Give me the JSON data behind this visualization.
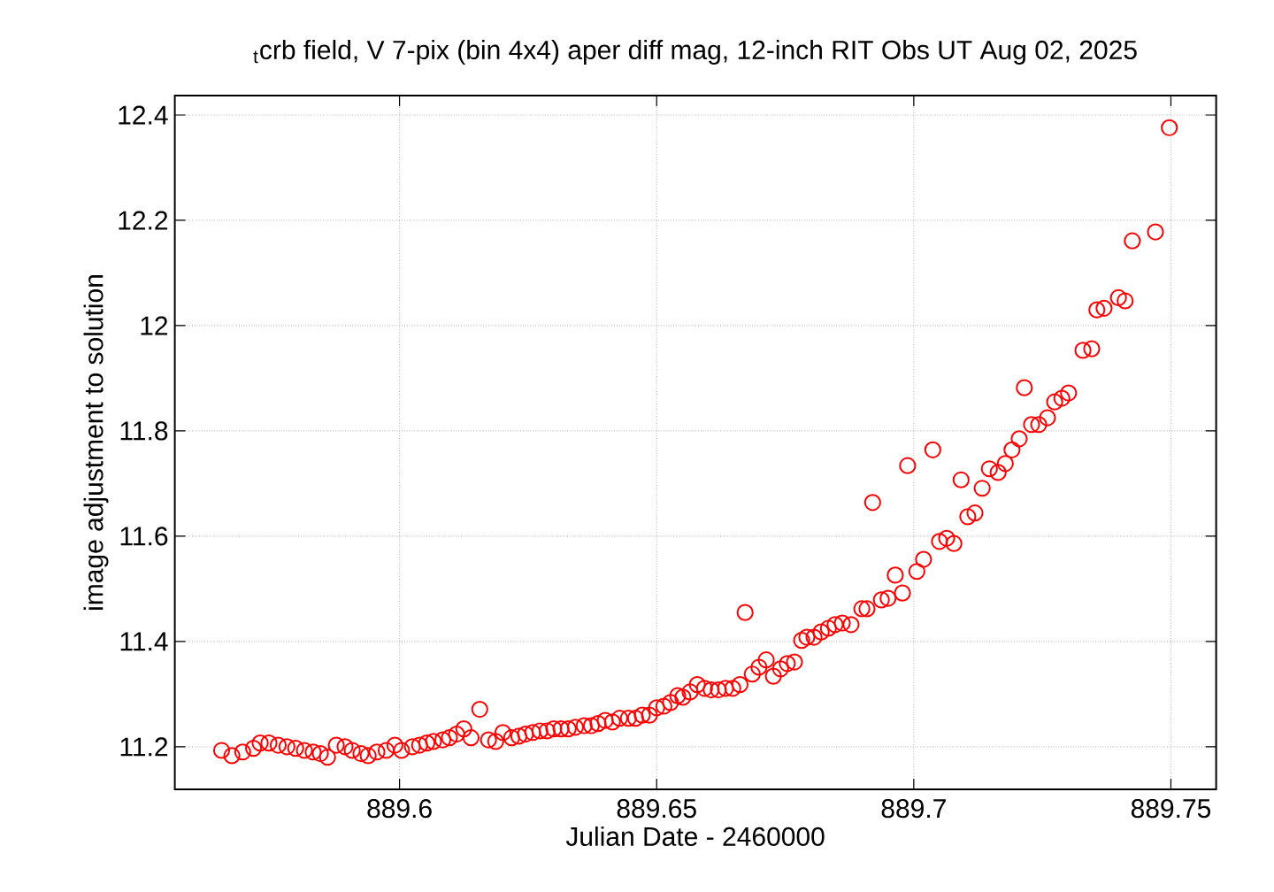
{
  "chart_data": {
    "type": "scatter",
    "title": "$_{t}$crb field, V 7-pix (bin 4x4) aper diff mag,  12-inch RIT Obs UT Aug 02, 2025",
    "xlabel": "Julian Date - 2460000",
    "ylabel": "image adjustment to solution",
    "xlim": [
      889.5563,
      889.7588
    ],
    "ylim": [
      11.119,
      12.437
    ],
    "xticks": [
      889.6,
      889.65,
      889.7,
      889.75
    ],
    "yticks": [
      11.2,
      11.4,
      11.6,
      11.8,
      12,
      12.2,
      12.4
    ],
    "grid": true,
    "marker": "circle",
    "series": [
      {
        "color": "#ff0000",
        "x": [
          889.5654,
          889.5674,
          889.5695,
          889.5716,
          889.5729,
          889.5746,
          889.5764,
          889.5781,
          889.5798,
          889.5815,
          889.5832,
          889.5846,
          889.586,
          889.5877,
          889.5894,
          889.5908,
          889.5925,
          889.5939,
          889.5956,
          889.5974,
          889.5991,
          889.6004,
          889.6025,
          889.6039,
          889.6053,
          889.6066,
          889.6084,
          889.6097,
          889.6111,
          889.6125,
          889.6139,
          889.6156,
          889.6173,
          889.6187,
          889.6201,
          889.6218,
          889.6232,
          889.6245,
          889.6259,
          889.6273,
          889.6287,
          889.63,
          889.6314,
          889.6328,
          889.6342,
          889.6359,
          889.6373,
          889.6386,
          889.64,
          889.6414,
          889.6428,
          889.6445,
          889.6459,
          889.6472,
          889.6486,
          889.65,
          889.6514,
          889.6527,
          889.6541,
          889.6551,
          889.6565,
          889.6579,
          889.6593,
          889.6606,
          889.662,
          889.6634,
          889.6648,
          889.6662,
          889.6672,
          889.6686,
          889.6699,
          889.6713,
          889.6727,
          889.6741,
          889.6754,
          889.6768,
          889.6782,
          889.6792,
          889.6806,
          889.682,
          889.6834,
          889.6847,
          889.6861,
          889.6878,
          889.6899,
          889.6909,
          889.692,
          889.6937,
          889.695,
          889.6964,
          889.6978,
          889.6988,
          889.7006,
          889.7019,
          889.7037,
          889.705,
          889.7064,
          889.7078,
          889.7092,
          889.7105,
          889.7119,
          889.7133,
          889.7147,
          889.7164,
          889.7178,
          889.7191,
          889.7205,
          889.7215,
          889.7229,
          889.7243,
          889.726,
          889.7274,
          889.7288,
          889.7301,
          889.7329,
          889.7346,
          889.7356,
          889.737,
          889.7398,
          889.7411,
          889.7425,
          889.747,
          889.7497
        ],
        "values": [
          11.193,
          11.183,
          11.19,
          11.197,
          11.207,
          11.207,
          11.203,
          11.2,
          11.197,
          11.193,
          11.19,
          11.187,
          11.18,
          11.203,
          11.2,
          11.193,
          11.187,
          11.183,
          11.19,
          11.193,
          11.203,
          11.193,
          11.2,
          11.203,
          11.207,
          11.21,
          11.213,
          11.217,
          11.224,
          11.234,
          11.217,
          11.271,
          11.213,
          11.21,
          11.227,
          11.217,
          11.22,
          11.224,
          11.227,
          11.23,
          11.23,
          11.234,
          11.234,
          11.234,
          11.237,
          11.24,
          11.24,
          11.244,
          11.25,
          11.247,
          11.254,
          11.254,
          11.254,
          11.26,
          11.26,
          11.274,
          11.277,
          11.284,
          11.297,
          11.294,
          11.304,
          11.318,
          11.311,
          11.308,
          11.308,
          11.311,
          11.311,
          11.318,
          11.455,
          11.338,
          11.351,
          11.365,
          11.334,
          11.348,
          11.358,
          11.361,
          11.402,
          11.408,
          11.408,
          11.418,
          11.425,
          11.432,
          11.435,
          11.432,
          11.462,
          11.462,
          11.664,
          11.479,
          11.482,
          11.526,
          11.492,
          11.734,
          11.533,
          11.556,
          11.764,
          11.59,
          11.596,
          11.586,
          11.707,
          11.637,
          11.644,
          11.691,
          11.728,
          11.721,
          11.738,
          11.764,
          11.785,
          11.882,
          11.812,
          11.812,
          11.825,
          11.855,
          11.862,
          11.872,
          11.953,
          11.956,
          12.03,
          12.033,
          12.053,
          12.047,
          12.161,
          12.178,
          12.376
        ]
      }
    ]
  }
}
